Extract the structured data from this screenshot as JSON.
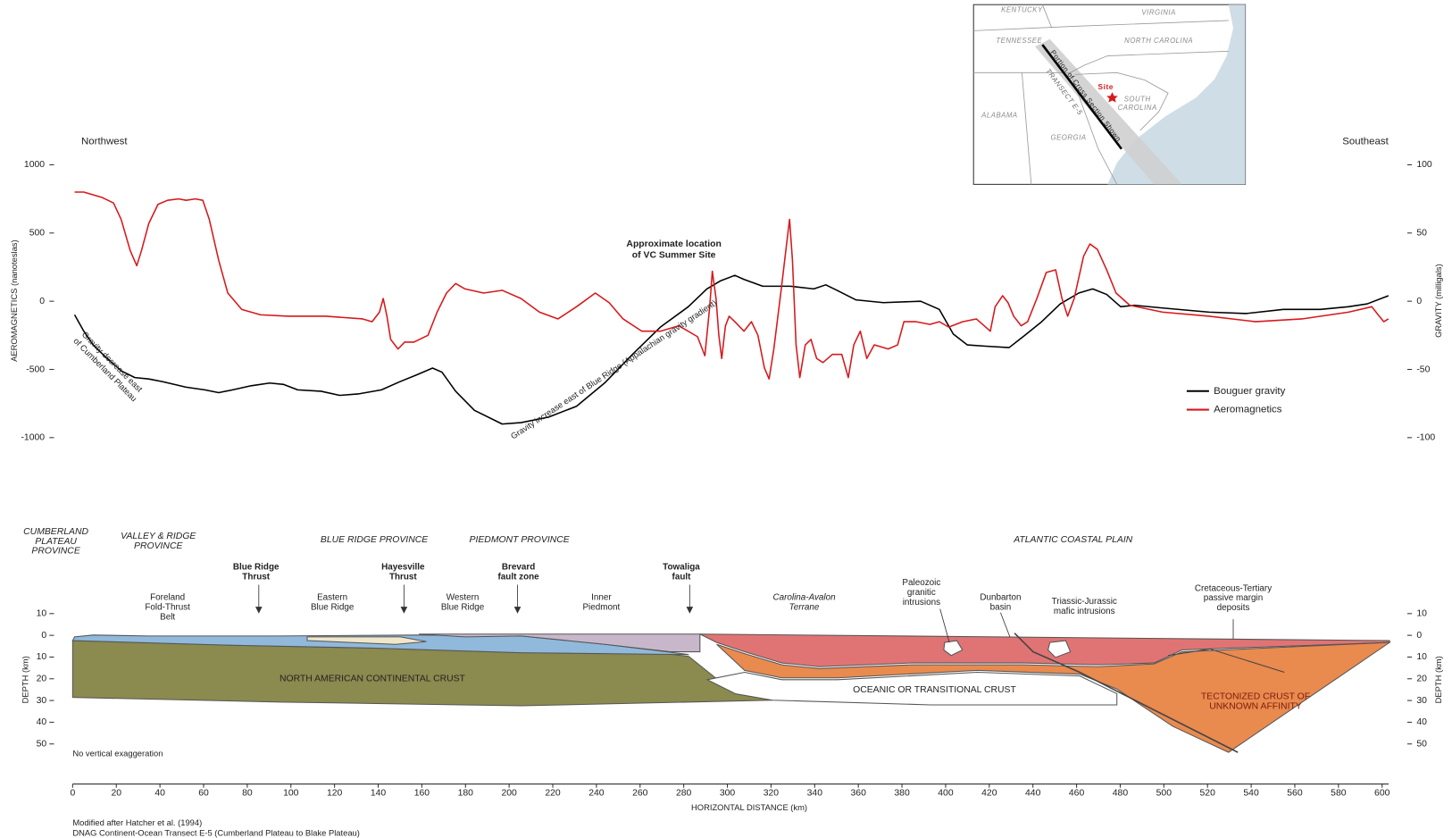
{
  "chart_data": [
    {
      "type": "line",
      "direction_labels": [
        "Northwest",
        "Southeast"
      ],
      "ylabel": "AEROMAGNETICS (nanoteslas)",
      "y2label": "GRAVITY (milligals)",
      "xlim": [
        0,
        603
      ],
      "ylim": [
        -1000,
        1000
      ],
      "yticks": [
        -1000,
        -500,
        0,
        500,
        1000
      ],
      "y2lim": [
        -100,
        100
      ],
      "y2ticks": [
        -100,
        -50,
        0,
        50,
        100
      ],
      "legend": "right",
      "annotations": {
        "site": [
          "Approximate location",
          "of VC Summer Site"
        ],
        "gravity_decrease": [
          "Gravity decrease east",
          "of Cumberland Plateau"
        ],
        "gravity_increase": "Gravity increase east of Blue Ridge (Appalachian gravity gradient)"
      },
      "series": [
        {
          "name": "Bouguer gravity",
          "color": "#000000",
          "axis": "y2",
          "x": [
            0.9,
            5.1,
            9.4,
            15.8,
            22.2,
            28.5,
            34.9,
            41.3,
            52.0,
            60.5,
            66.9,
            73.3,
            81.8,
            90.3,
            96.7,
            103.1,
            113.8,
            122.3,
            130.8,
            141.5,
            150.0,
            157.6,
            164.9,
            169.2,
            175.5,
            184.1,
            196.8,
            205.4,
            218.1,
            230.9,
            243.7,
            256.5,
            269.3,
            282.1,
            290.6,
            297.0,
            303.4,
            307.6,
            316.2,
            328.9,
            339.6,
            345.1,
            350.2,
            358.8,
            371.5,
            388.6,
            397.1,
            403.5,
            409.9,
            418.4,
            429.1,
            435.5,
            444.0,
            452.5,
            461.0,
            467.4,
            473.8,
            480.2,
            486.6,
            499.4,
            520.7,
            537.7,
            554.8,
            571.8,
            584.6,
            593.1,
            602.9
          ],
          "values": [
            -10,
            -22,
            -32,
            -42,
            -51,
            -56,
            -57,
            -59,
            -63,
            -65,
            -67,
            -65,
            -62,
            -60,
            -61,
            -65,
            -66,
            -69,
            -68,
            -65,
            -59,
            -54,
            -49,
            -52,
            -66,
            -80,
            -90,
            -89,
            -85,
            -77,
            -60,
            -39,
            -19,
            -4,
            9,
            15,
            19,
            16,
            11,
            11,
            9,
            12,
            8,
            1,
            -1,
            0,
            -6,
            -24,
            -32,
            -33,
            -34,
            -26,
            -15,
            -2,
            6,
            9,
            5,
            -4,
            -3,
            -5,
            -8,
            -9,
            -6,
            -6,
            -4,
            -2,
            4
          ]
        },
        {
          "name": "Aeromagnetics",
          "color": "#d7191c",
          "x": [
            0.9,
            5.1,
            13.6,
            18.7,
            22.2,
            26.4,
            29.4,
            31.5,
            34.9,
            39.1,
            43.5,
            48.6,
            52.0,
            56.2,
            59.6,
            62.6,
            66.9,
            71.1,
            77.5,
            86.1,
            98.8,
            115.9,
            132.9,
            137.2,
            140.6,
            142.3,
            144.0,
            145.7,
            149.1,
            152.1,
            156.4,
            162.8,
            167.0,
            171.3,
            175.5,
            179.8,
            188.3,
            196.8,
            205.4,
            213.9,
            222.4,
            230.9,
            239.5,
            245.8,
            252.2,
            260.8,
            269.3,
            277.8,
            286.3,
            289.7,
            291.9,
            293.1,
            294.8,
            296.1,
            297.4,
            299.1,
            300.8,
            303.4,
            307.6,
            311.0,
            314.0,
            317.0,
            319.1,
            321.3,
            324.7,
            327.2,
            328.5,
            329.8,
            331.5,
            333.2,
            335.7,
            338.3,
            340.9,
            343.8,
            348.1,
            352.4,
            355.4,
            357.9,
            360.9,
            363.9,
            367.3,
            373.7,
            378.0,
            380.9,
            386.5,
            392.8,
            397.1,
            401.4,
            407.8,
            414.1,
            420.5,
            422.7,
            426.1,
            428.6,
            431.2,
            434.6,
            437.6,
            441.8,
            446.1,
            450.4,
            453.3,
            455.9,
            458.9,
            463.2,
            466.1,
            469.5,
            473.8,
            478.1,
            484.4,
            499.4,
            520.7,
            542.0,
            563.3,
            584.6,
            595.3,
            598.2,
            600.8,
            602.9
          ],
          "values": [
            800,
            800,
            760,
            720,
            600,
            370,
            260,
            370,
            570,
            710,
            740,
            750,
            740,
            750,
            740,
            600,
            300,
            60,
            -60,
            -100,
            -110,
            -110,
            -130,
            -150,
            -80,
            20,
            -110,
            -280,
            -350,
            -300,
            -300,
            -250,
            -80,
            60,
            130,
            90,
            60,
            80,
            20,
            -80,
            -130,
            -40,
            60,
            -10,
            -130,
            -220,
            -220,
            -180,
            -260,
            -400,
            -40,
            220,
            20,
            -250,
            -420,
            -180,
            -110,
            -150,
            -220,
            -150,
            -250,
            -490,
            -570,
            -350,
            90,
            430,
            600,
            300,
            -320,
            -560,
            -320,
            -280,
            -420,
            -450,
            -390,
            -390,
            -560,
            -320,
            -220,
            -420,
            -320,
            -350,
            -320,
            -150,
            -150,
            -170,
            -150,
            -190,
            -150,
            -130,
            -220,
            -40,
            40,
            -10,
            -110,
            -180,
            -150,
            20,
            210,
            230,
            20,
            -110,
            20,
            330,
            420,
            380,
            230,
            60,
            -30,
            -80,
            -110,
            -150,
            -130,
            -80,
            -40,
            -100,
            -150,
            -130
          ]
        }
      ]
    },
    {
      "type": "cross-section",
      "xlabel": "HORIZONTAL DISTANCE (km)",
      "ylabel": "DEPTH (km)",
      "xlim": [
        0,
        603
      ],
      "xticks": [
        0,
        20,
        40,
        60,
        80,
        100,
        120,
        140,
        160,
        180,
        200,
        220,
        240,
        260,
        280,
        300,
        320,
        340,
        360,
        380,
        400,
        420,
        440,
        460,
        480,
        500,
        520,
        540,
        560,
        580,
        600
      ],
      "ylim": [
        50,
        -10
      ],
      "yticks": [
        {
          "value": -10,
          "label": "10"
        },
        0,
        10,
        20,
        30,
        40,
        50
      ],
      "note": "No vertical exaggeration",
      "provinces": [
        {
          "lines": [
            "CUMBERLAND",
            "PLATEAU",
            "PROVINCE"
          ]
        },
        {
          "lines": [
            "VALLEY & RIDGE",
            "PROVINCE"
          ]
        },
        {
          "lines": [
            "BLUE RIDGE PROVINCE"
          ]
        },
        {
          "lines": [
            "PIEDMONT PROVINCE"
          ]
        },
        {
          "lines": [
            "ATLANTIC COASTAL PLAIN"
          ]
        }
      ],
      "structures": [
        {
          "lines": [
            "Foreland",
            "Fold-Thrust",
            "Belt"
          ],
          "bold": false
        },
        {
          "lines": [
            "Blue Ridge",
            "Thrust"
          ],
          "bold": true
        },
        {
          "lines": [
            "Eastern",
            "Blue Ridge"
          ],
          "bold": false
        },
        {
          "lines": [
            "Hayesville",
            "Thrust"
          ],
          "bold": true
        },
        {
          "lines": [
            "Western",
            "Blue Ridge"
          ],
          "bold": false
        },
        {
          "lines": [
            "Brevard",
            "fault zone"
          ],
          "bold": true
        },
        {
          "lines": [
            "Inner",
            "Piedmont"
          ],
          "bold": false
        },
        {
          "lines": [
            "Towaliga",
            "fault"
          ],
          "bold": true
        },
        {
          "lines": [
            "Carolina-Avalon",
            "Terrane"
          ],
          "bold": false,
          "italic": true
        },
        {
          "lines": [
            "Paleozoic",
            "granitic",
            "intrusions"
          ],
          "bold": false
        },
        {
          "lines": [
            "Dunbarton",
            "basin"
          ],
          "bold": false
        },
        {
          "lines": [
            "Triassic-Jurassic",
            "mafic intrusions"
          ],
          "bold": false
        },
        {
          "lines": [
            "Cretaceous-Tertiary",
            "passive margin",
            "deposits"
          ],
          "bold": false
        }
      ],
      "units": [
        {
          "lines": [
            "NORTH AMERICAN CONTINENTAL CRUST"
          ],
          "color": "#222222"
        },
        {
          "lines": [
            "OCEANIC OR TRANSITIONAL CRUST"
          ],
          "color": "#222222"
        },
        {
          "lines": [
            "TECTONIZED CRUST OF",
            "UNKNOWN AFFINITY"
          ],
          "color": "#7a1c0c"
        }
      ]
    }
  ],
  "inset_map": {
    "states": [
      "KENTUCKY",
      "VIRGINIA",
      "TENNESSEE",
      "NORTH CAROLINA",
      "ALABAMA",
      "GEORGIA",
      "SOUTH",
      "CAROLINA"
    ],
    "site_label": "Site",
    "transect_labels": [
      "Portion of Cross Section Shown",
      "TRANSECT E-5"
    ]
  },
  "footer": [
    "Modified after Hatcher et al. (1994)",
    "DNAG Continent-Ocean Transect E-5 (Cumberland Plateau to Blake Plateau)"
  ]
}
